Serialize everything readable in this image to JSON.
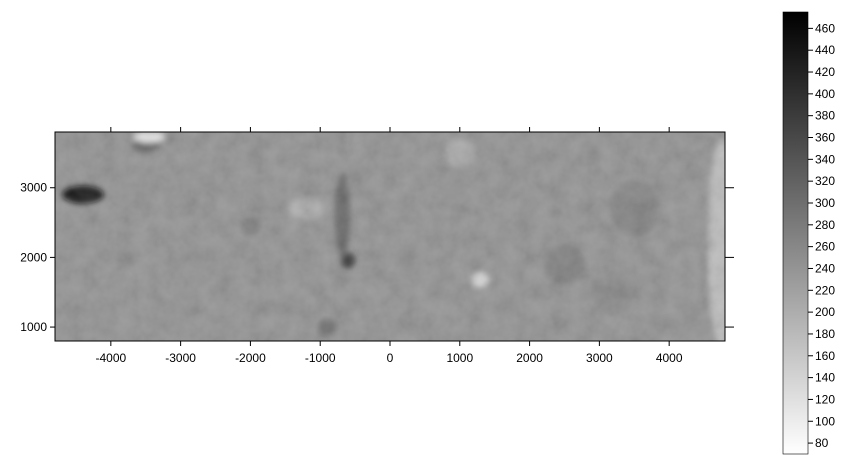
{
  "chart_data": {
    "type": "heatmap",
    "title": "",
    "xlabel": "",
    "ylabel": "",
    "colormap": "grayscale (white = low, black = high)",
    "xlim": [
      -4800,
      4800
    ],
    "ylim": [
      800,
      3800
    ],
    "x_ticks": [
      -4000,
      -3000,
      -2000,
      -1000,
      0,
      1000,
      2000,
      3000,
      4000
    ],
    "x_tick_labels": [
      "-4000",
      "-3000",
      "-2000",
      "-1000",
      "0",
      "1000",
      "2000",
      "3000",
      "4000"
    ],
    "y_ticks": [
      1000,
      2000,
      3000
    ],
    "y_tick_labels": [
      "1000",
      "2000",
      "3000"
    ],
    "colorbar": {
      "range": [
        70,
        475
      ],
      "ticks": [
        80,
        100,
        120,
        140,
        160,
        180,
        200,
        220,
        240,
        260,
        280,
        300,
        320,
        340,
        360,
        380,
        400,
        420,
        440,
        460
      ],
      "tick_labels": [
        "80",
        "100",
        "120",
        "140",
        "160",
        "180",
        "200",
        "220",
        "240",
        "260",
        "280",
        "300",
        "320",
        "340",
        "360",
        "380",
        "400",
        "420",
        "440",
        "460"
      ]
    },
    "background_value": 250,
    "features": [
      {
        "x": -4400,
        "y": 2900,
        "value": 460,
        "sx": 300,
        "sy": 130
      },
      {
        "x": -3500,
        "y": 3600,
        "value": 330,
        "sx": 200,
        "sy": 90
      },
      {
        "x": -3450,
        "y": 3730,
        "value": 120,
        "sx": 230,
        "sy": 80
      },
      {
        "x": -600,
        "y": 1950,
        "value": 395,
        "sx": 100,
        "sy": 110
      },
      {
        "x": -680,
        "y": 2600,
        "value": 320,
        "sx": 110,
        "sy": 600
      },
      {
        "x": -900,
        "y": 1000,
        "value": 310,
        "sx": 130,
        "sy": 120
      },
      {
        "x": -1200,
        "y": 2700,
        "value": 205,
        "sx": 250,
        "sy": 160
      },
      {
        "x": 1300,
        "y": 1680,
        "value": 140,
        "sx": 130,
        "sy": 110
      },
      {
        "x": 1000,
        "y": 3500,
        "value": 215,
        "sx": 220,
        "sy": 200
      },
      {
        "x": 4750,
        "y": 2200,
        "value": 180,
        "sx": 200,
        "sy": 1500
      },
      {
        "x": -2000,
        "y": 2450,
        "value": 285,
        "sx": 150,
        "sy": 130
      },
      {
        "x": 2500,
        "y": 1900,
        "value": 280,
        "sx": 300,
        "sy": 300
      },
      {
        "x": 3500,
        "y": 2700,
        "value": 275,
        "sx": 350,
        "sy": 400
      },
      {
        "x": 3200,
        "y": 1500,
        "value": 265,
        "sx": 300,
        "sy": 300
      }
    ]
  }
}
